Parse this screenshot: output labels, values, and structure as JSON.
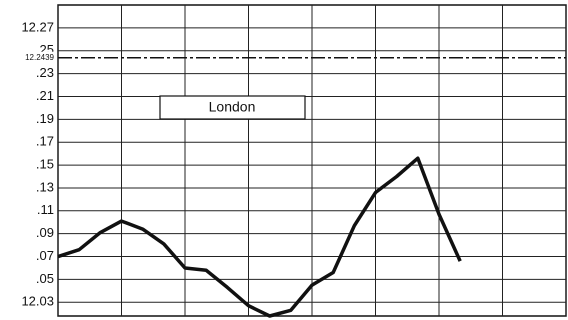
{
  "chart_data": {
    "type": "line",
    "series": [
      {
        "name": "London",
        "color": "#111111",
        "x": [
          0,
          1,
          2,
          3,
          4,
          5,
          6,
          7,
          8,
          9,
          10,
          11,
          12,
          13,
          14,
          15,
          16,
          17,
          18,
          19
        ],
        "values": [
          12.07,
          12.076,
          12.091,
          12.101,
          12.094,
          12.081,
          12.06,
          12.058,
          12.043,
          12.027,
          12.018,
          12.023,
          12.045,
          12.056,
          12.097,
          12.126,
          12.14,
          12.156,
          12.107,
          12.066
        ]
      }
    ],
    "xlim": [
      0,
      24
    ],
    "xticks": [
      0,
      3,
      6,
      9,
      12,
      15,
      18,
      21,
      24
    ],
    "ylim": [
      12.018,
      12.29
    ],
    "yticks": [
      12.27,
      {
        "value": 12.25,
        "label": ".25"
      },
      {
        "value": 12.23,
        "label": ".23"
      },
      {
        "value": 12.21,
        "label": ".21"
      },
      {
        "value": 12.19,
        "label": ".19"
      },
      {
        "value": 12.17,
        "label": ".17"
      },
      {
        "value": 12.15,
        "label": ".15"
      },
      {
        "value": 12.13,
        "label": ".13"
      },
      {
        "value": 12.11,
        "label": ".11"
      },
      {
        "value": 12.09,
        "label": ".09"
      },
      {
        "value": 12.07,
        "label": ".07"
      },
      {
        "value": 12.05,
        "label": ".05"
      },
      12.03
    ],
    "reference_line": 12.2439,
    "grid": true
  }
}
